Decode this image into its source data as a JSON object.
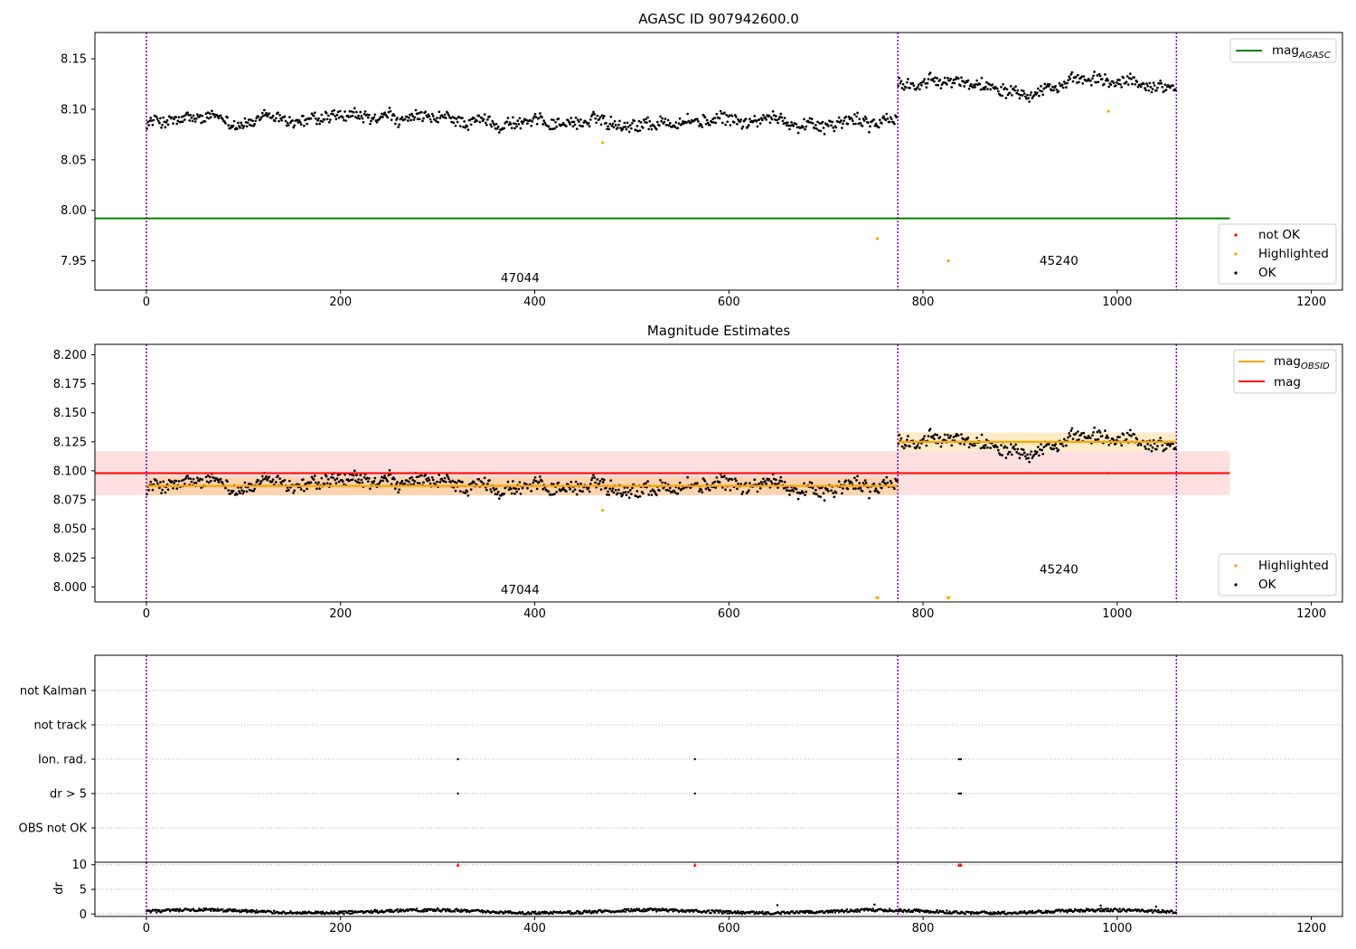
{
  "chart_data": [
    {
      "type": "scatter",
      "title": "AGASC ID 907942600.0",
      "xlim": [
        -53,
        1232
      ],
      "ylim": [
        7.921,
        8.176
      ],
      "xticks": [
        0,
        200,
        400,
        600,
        800,
        1000,
        1200
      ],
      "yticks": [
        7.95,
        8.0,
        8.05,
        8.1,
        8.15
      ],
      "ytick_labels": [
        "7.95",
        "8.00",
        "8.05",
        "8.10",
        "8.15"
      ],
      "hlines": [
        {
          "name": "mag_AGASC",
          "value": 7.992,
          "x": [
            -53,
            1116
          ],
          "color": "#008000"
        }
      ],
      "vlines": [
        0,
        774,
        1061
      ],
      "segments": [
        {
          "obsid": "47044",
          "x": [
            0,
            774
          ],
          "mean": 8.088,
          "std": 0.008,
          "label_x": 385,
          "label_y": 7.929
        },
        {
          "obsid": "45240",
          "x": [
            774,
            1061
          ],
          "mean": 8.125,
          "std": 0.008,
          "label_x": 940,
          "label_y": 7.946
        }
      ],
      "highlighted_points": [
        {
          "x": 470,
          "y": 8.067
        },
        {
          "x": 753,
          "y": 7.972
        },
        {
          "x": 826,
          "y": 7.95
        },
        {
          "x": 991,
          "y": 8.098
        }
      ],
      "legends": [
        {
          "position": "upper right",
          "entries": [
            {
              "label": "mag",
              "sub": "AGASC",
              "kind": "line",
              "color": "#008000"
            }
          ]
        },
        {
          "position": "lower right",
          "entries": [
            {
              "label": "not OK",
              "kind": "dot",
              "color": "#ff0000"
            },
            {
              "label": "Highlighted",
              "kind": "dot",
              "color": "#ffa500"
            },
            {
              "label": "OK",
              "kind": "dot",
              "color": "#000000"
            }
          ]
        }
      ]
    },
    {
      "type": "scatter",
      "title": "Magnitude Estimates",
      "xlim": [
        -53,
        1232
      ],
      "ylim": [
        7.987,
        8.209
      ],
      "xticks": [
        0,
        200,
        400,
        600,
        800,
        1000,
        1200
      ],
      "yticks": [
        8.0,
        8.025,
        8.05,
        8.075,
        8.1,
        8.125,
        8.15,
        8.175,
        8.2
      ],
      "ytick_labels": [
        "8.000",
        "8.025",
        "8.050",
        "8.075",
        "8.100",
        "8.125",
        "8.150",
        "8.175",
        "8.200"
      ],
      "mag": {
        "value": 8.098,
        "band": [
          8.079,
          8.117
        ],
        "x": [
          -53,
          1116
        ],
        "color": "#ff0000"
      },
      "vlines": [
        0,
        774,
        1061
      ],
      "segments": [
        {
          "obsid": "47044",
          "x": [
            0,
            774
          ],
          "mean": 8.087,
          "std": 0.008,
          "label_x": 385,
          "label_y": 7.994
        },
        {
          "obsid": "45240",
          "x": [
            774,
            1061
          ],
          "mean": 8.125,
          "std": 0.008,
          "label_x": 940,
          "label_y": 8.0115
        }
      ],
      "highlighted_points": [
        {
          "x": 470,
          "y": 8.066
        },
        {
          "x": 991,
          "y": 8.098
        }
      ],
      "out_of_range_markers": [
        {
          "x": 753
        },
        {
          "x": 826
        }
      ],
      "legends": [
        {
          "position": "upper right",
          "entries": [
            {
              "label": "mag",
              "sub": "OBSID",
              "kind": "line",
              "color": "#ffa500"
            },
            {
              "label": "mag",
              "kind": "line",
              "color": "#ff0000"
            }
          ]
        },
        {
          "position": "lower right",
          "entries": [
            {
              "label": "Highlighted",
              "kind": "dot",
              "color": "#ffa500"
            },
            {
              "label": "OK",
              "kind": "dot",
              "color": "#000000"
            }
          ]
        }
      ]
    },
    {
      "type": "scatter",
      "title": "",
      "xlim": [
        -53,
        1232
      ],
      "categories": [
        "not Kalman",
        "not track",
        "Ion. rad.",
        "dr > 5",
        "OBS not OK"
      ],
      "flag_points": [
        {
          "category": "Ion. rad.",
          "x": [
            321,
            565,
            837,
            839
          ]
        },
        {
          "category": "dr > 5",
          "x": [
            321,
            565,
            837,
            839
          ]
        }
      ],
      "vlines": [
        0,
        774,
        1061
      ]
    },
    {
      "type": "scatter",
      "title": "",
      "ylabel": "dr",
      "xlim": [
        -53,
        1232
      ],
      "ylim": [
        -0.5,
        10.5
      ],
      "xticks": [
        0,
        200,
        400,
        600,
        800,
        1000,
        1200
      ],
      "yticks": [
        0,
        5,
        10
      ],
      "ytick_labels": [
        "0",
        "5",
        "10"
      ],
      "dr_baseline": {
        "mean": 0.5,
        "spread": 0.4
      },
      "dr_spikes": [
        {
          "x": 650,
          "y": 1.8
        },
        {
          "x": 750,
          "y": 1.9
        },
        {
          "x": 983,
          "y": 1.7
        },
        {
          "x": 1040,
          "y": 1.5
        }
      ],
      "capped_points": [
        {
          "x": 321,
          "y": 10
        },
        {
          "x": 565,
          "y": 10
        },
        {
          "x": 837,
          "y": 10
        },
        {
          "x": 839,
          "y": 10
        }
      ],
      "vlines": [
        0,
        774,
        1061
      ]
    }
  ]
}
